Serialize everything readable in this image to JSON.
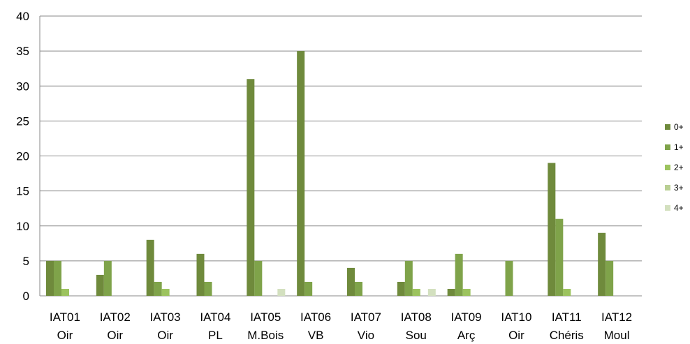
{
  "chart_data": {
    "type": "bar",
    "title": "",
    "xlabel": "",
    "ylabel": "",
    "ylim": [
      0,
      40
    ],
    "yticks": [
      0,
      5,
      10,
      15,
      20,
      25,
      30,
      35,
      40
    ],
    "grid": true,
    "legend_position": "right",
    "categories": [
      [
        "IAT01",
        "Oir"
      ],
      [
        "IAT02",
        "Oir"
      ],
      [
        "IAT03",
        "Oir"
      ],
      [
        "IAT04",
        "PL"
      ],
      [
        "IAT05",
        "M.Bois"
      ],
      [
        "IAT06",
        "VB"
      ],
      [
        "IAT07",
        "Vio"
      ],
      [
        "IAT08",
        "Sou"
      ],
      [
        "IAT09",
        "Arç"
      ],
      [
        "IAT10",
        "Oir"
      ],
      [
        "IAT11",
        "Chéris"
      ],
      [
        "IAT12",
        "Moul"
      ]
    ],
    "series": [
      {
        "name": "0+",
        "color": "#6f8a3c",
        "values": [
          5,
          3,
          8,
          6,
          31,
          35,
          4,
          2,
          1,
          0,
          19,
          9
        ]
      },
      {
        "name": "1+",
        "color": "#7fa34a",
        "values": [
          5,
          5,
          2,
          2,
          5,
          2,
          2,
          5,
          6,
          5,
          11,
          5
        ]
      },
      {
        "name": "2+",
        "color": "#9cc35e",
        "values": [
          1,
          0,
          1,
          0,
          0,
          0,
          0,
          1,
          1,
          0,
          1,
          0
        ]
      },
      {
        "name": "3+",
        "color": "#b9cf93",
        "values": [
          0,
          0,
          0,
          0,
          0,
          0,
          0,
          0,
          0,
          0,
          0,
          0
        ]
      },
      {
        "name": "4+",
        "color": "#d3e0bf",
        "values": [
          0,
          0,
          0,
          0,
          1,
          0,
          0,
          1,
          0,
          0,
          0,
          0
        ]
      }
    ]
  }
}
